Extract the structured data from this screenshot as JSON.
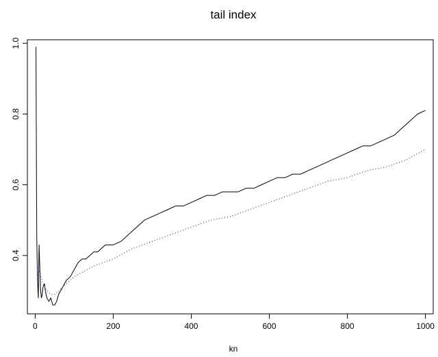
{
  "chart_data": {
    "type": "line",
    "title": "tail index",
    "xlabel": "kn",
    "ylabel": "",
    "xlim": [
      -20,
      1020
    ],
    "ylim": [
      0.235,
      1.01
    ],
    "x_ticks": [
      0,
      200,
      400,
      600,
      800,
      1000
    ],
    "y_ticks": [
      0.4,
      0.6,
      0.8,
      1.0
    ],
    "x_tick_labels": [
      "0",
      "200",
      "400",
      "600",
      "800",
      "1000"
    ],
    "y_tick_labels": [
      "0.4",
      "0.6",
      "0.8",
      "1.0"
    ],
    "grid": false,
    "legend": "none",
    "series": [
      {
        "style": "solid",
        "color": "#000000",
        "x": [
          2,
          4,
          6,
          8,
          10,
          12,
          14,
          16,
          18,
          20,
          24,
          26,
          30,
          35,
          40,
          45,
          50,
          55,
          60,
          65,
          70,
          75,
          80,
          90,
          100,
          110,
          120,
          130,
          140,
          150,
          160,
          170,
          180,
          190,
          200,
          220,
          240,
          260,
          280,
          300,
          320,
          340,
          360,
          380,
          400,
          420,
          440,
          460,
          480,
          500,
          520,
          540,
          560,
          580,
          600,
          620,
          640,
          660,
          680,
          700,
          720,
          740,
          760,
          780,
          800,
          820,
          840,
          860,
          880,
          900,
          920,
          940,
          960,
          980,
          1000
        ],
        "y": [
          0.99,
          0.45,
          0.33,
          0.28,
          0.43,
          0.36,
          0.3,
          0.28,
          0.29,
          0.31,
          0.32,
          0.3,
          0.28,
          0.27,
          0.28,
          0.26,
          0.26,
          0.27,
          0.29,
          0.3,
          0.31,
          0.32,
          0.33,
          0.34,
          0.36,
          0.38,
          0.39,
          0.39,
          0.4,
          0.41,
          0.41,
          0.42,
          0.43,
          0.43,
          0.43,
          0.44,
          0.46,
          0.48,
          0.5,
          0.51,
          0.52,
          0.53,
          0.54,
          0.54,
          0.55,
          0.56,
          0.57,
          0.57,
          0.58,
          0.58,
          0.58,
          0.59,
          0.59,
          0.6,
          0.61,
          0.62,
          0.62,
          0.63,
          0.63,
          0.64,
          0.65,
          0.66,
          0.67,
          0.68,
          0.69,
          0.7,
          0.71,
          0.71,
          0.72,
          0.73,
          0.74,
          0.76,
          0.78,
          0.8,
          0.81
        ]
      },
      {
        "style": "dotted",
        "color": "#1f4e9a",
        "x": [
          2,
          4,
          6,
          8,
          10,
          15,
          20,
          30,
          40,
          50,
          60,
          80,
          100,
          150,
          200,
          250,
          300,
          350,
          400,
          450,
          500,
          550,
          600,
          650,
          700,
          750,
          800,
          850,
          900,
          950,
          1000
        ],
        "y": [
          0.99,
          0.45,
          0.36,
          0.34,
          0.36,
          0.34,
          0.32,
          0.3,
          0.29,
          0.29,
          0.3,
          0.32,
          0.34,
          0.37,
          0.39,
          0.42,
          0.44,
          0.46,
          0.48,
          0.5,
          0.51,
          0.53,
          0.55,
          0.57,
          0.59,
          0.61,
          0.62,
          0.64,
          0.65,
          0.67,
          0.7
        ]
      }
    ]
  }
}
